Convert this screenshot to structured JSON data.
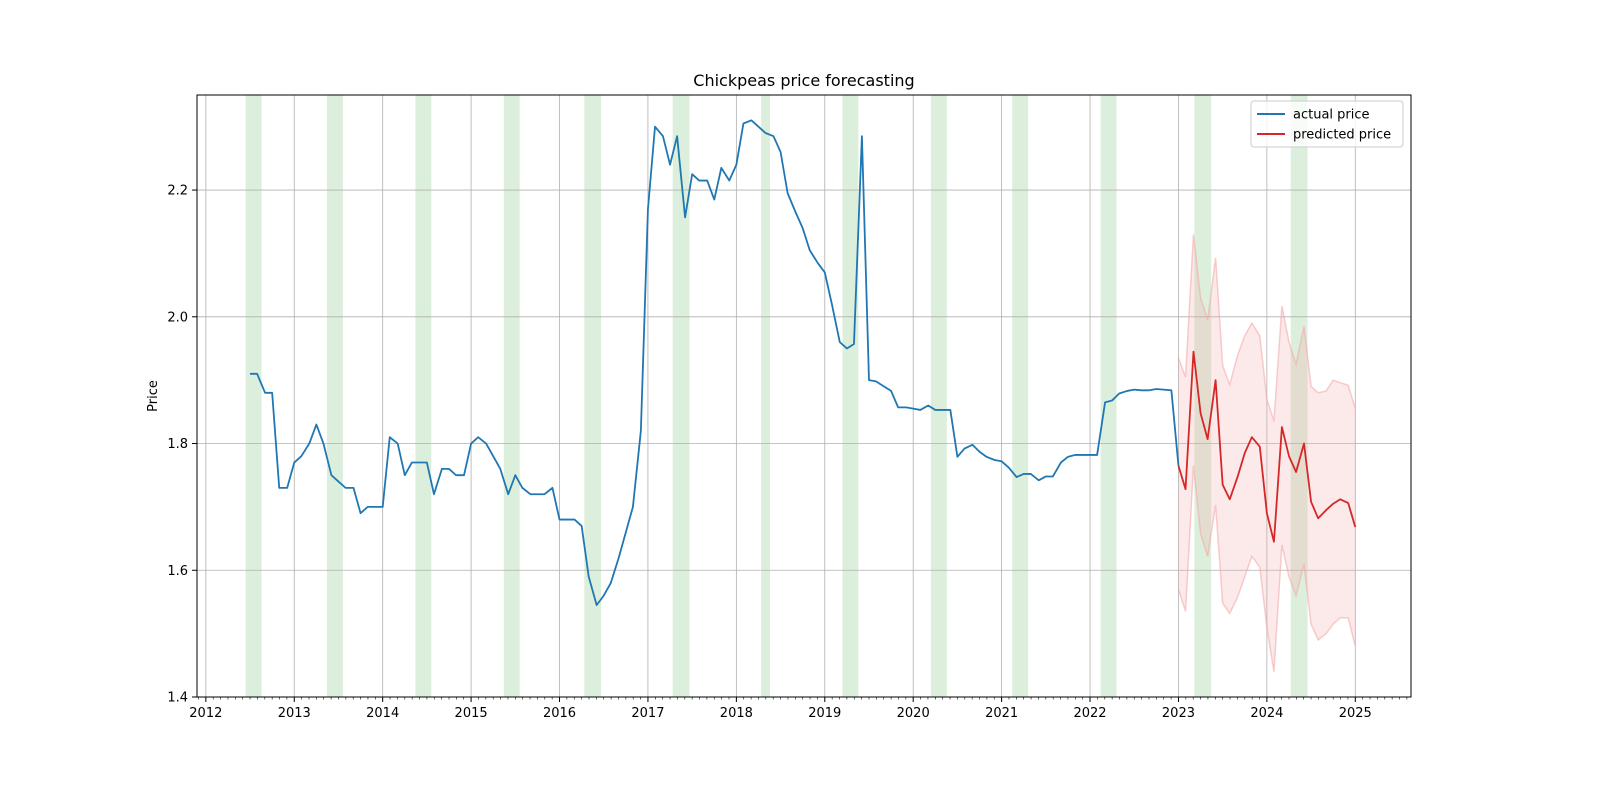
{
  "chart_data": {
    "type": "line",
    "title": "Chickpeas price forecasting",
    "xlabel": "",
    "ylabel": "Price",
    "xlim": [
      2011.9,
      2025.63
    ],
    "ylim": [
      1.4,
      2.35
    ],
    "x_ticks": [
      2012,
      2013,
      2014,
      2015,
      2016,
      2017,
      2018,
      2019,
      2020,
      2021,
      2022,
      2023,
      2024,
      2025
    ],
    "y_ticks": [
      1.4,
      1.6,
      1.8,
      2.0,
      2.2
    ],
    "grid": true,
    "legend_position": "top-right",
    "series": [
      {
        "name": "actual price",
        "color": "#1f77b4",
        "x": [
          2012.5,
          2012.58,
          2012.67,
          2012.75,
          2012.83,
          2012.92,
          2013.0,
          2013.08,
          2013.17,
          2013.25,
          2013.33,
          2013.42,
          2013.5,
          2013.58,
          2013.67,
          2013.75,
          2013.83,
          2013.92,
          2014.0,
          2014.08,
          2014.17,
          2014.25,
          2014.33,
          2014.42,
          2014.5,
          2014.58,
          2014.67,
          2014.75,
          2014.83,
          2014.92,
          2015.0,
          2015.08,
          2015.17,
          2015.25,
          2015.33,
          2015.42,
          2015.5,
          2015.58,
          2015.67,
          2015.75,
          2015.83,
          2015.92,
          2016.0,
          2016.08,
          2016.17,
          2016.25,
          2016.33,
          2016.42,
          2016.5,
          2016.58,
          2016.67,
          2016.75,
          2016.83,
          2016.92,
          2017.0,
          2017.08,
          2017.17,
          2017.25,
          2017.33,
          2017.42,
          2017.5,
          2017.58,
          2017.67,
          2017.75,
          2017.83,
          2017.92,
          2018.0,
          2018.08,
          2018.17,
          2018.25,
          2018.33,
          2018.42,
          2018.5,
          2018.58,
          2018.67,
          2018.75,
          2018.83,
          2018.92,
          2019.0,
          2019.08,
          2019.17,
          2019.25,
          2019.33,
          2019.42,
          2019.5,
          2019.58,
          2019.67,
          2019.75,
          2019.83,
          2019.92,
          2020.0,
          2020.08,
          2020.17,
          2020.25,
          2020.33,
          2020.42,
          2020.5,
          2020.58,
          2020.67,
          2020.75,
          2020.83,
          2020.92,
          2021.0,
          2021.08,
          2021.17,
          2021.25,
          2021.33,
          2021.42,
          2021.5,
          2021.58,
          2021.67,
          2021.75,
          2021.83,
          2021.92,
          2022.0,
          2022.08,
          2022.17,
          2022.25,
          2022.33,
          2022.42,
          2022.5,
          2022.58,
          2022.67,
          2022.75,
          2022.83,
          2022.92,
          2023.0
        ],
        "y": [
          1.91,
          1.91,
          1.88,
          1.88,
          1.73,
          1.73,
          1.77,
          1.78,
          1.8,
          1.83,
          1.8,
          1.75,
          1.74,
          1.73,
          1.73,
          1.69,
          1.7,
          1.7,
          1.7,
          1.81,
          1.8,
          1.75,
          1.77,
          1.77,
          1.77,
          1.72,
          1.76,
          1.76,
          1.75,
          1.75,
          1.8,
          1.81,
          1.8,
          1.78,
          1.76,
          1.72,
          1.75,
          1.73,
          1.72,
          1.72,
          1.72,
          1.73,
          1.68,
          1.68,
          1.68,
          1.67,
          1.59,
          1.545,
          1.56,
          1.58,
          1.62,
          1.66,
          1.7,
          1.82,
          2.17,
          2.3,
          2.285,
          2.24,
          2.285,
          2.157,
          2.225,
          2.215,
          2.215,
          2.185,
          2.235,
          2.215,
          2.24,
          2.305,
          2.31,
          2.3,
          2.29,
          2.285,
          2.26,
          2.195,
          2.165,
          2.14,
          2.105,
          2.085,
          2.07,
          2.02,
          1.96,
          1.95,
          1.957,
          2.285,
          1.9,
          1.898,
          1.89,
          1.883,
          1.857,
          1.857,
          1.855,
          1.853,
          1.86,
          1.853,
          1.853,
          1.853,
          1.779,
          1.792,
          1.798,
          1.787,
          1.779,
          1.774,
          1.772,
          1.762,
          1.747,
          1.752,
          1.752,
          1.742,
          1.748,
          1.748,
          1.77,
          1.779,
          1.782,
          1.782,
          1.782,
          1.782,
          1.865,
          1.868,
          1.879,
          1.883,
          1.885,
          1.884,
          1.884,
          1.886,
          1.885,
          1.884,
          1.765
        ]
      },
      {
        "name": "predicted price",
        "color": "#d62728",
        "x": [
          2023.0,
          2023.08,
          2023.17,
          2023.25,
          2023.33,
          2023.42,
          2023.5,
          2023.58,
          2023.67,
          2023.75,
          2023.83,
          2023.92,
          2024.0,
          2024.08,
          2024.17,
          2024.25,
          2024.33,
          2024.42,
          2024.5,
          2024.58,
          2024.67,
          2024.75,
          2024.83,
          2024.92,
          2025.0
        ],
        "y": [
          1.765,
          1.728,
          1.945,
          1.848,
          1.807,
          1.9,
          1.735,
          1.712,
          1.748,
          1.785,
          1.81,
          1.795,
          1.69,
          1.645,
          1.826,
          1.78,
          1.755,
          1.8,
          1.708,
          1.682,
          1.695,
          1.705,
          1.712,
          1.706,
          1.668
        ]
      }
    ],
    "confidence_band": {
      "color": "#f4a6a6",
      "x": [
        2023.0,
        2023.08,
        2023.17,
        2023.25,
        2023.33,
        2023.42,
        2023.5,
        2023.58,
        2023.67,
        2023.75,
        2023.83,
        2023.92,
        2024.0,
        2024.08,
        2024.17,
        2024.25,
        2024.33,
        2024.42,
        2024.5,
        2024.58,
        2024.67,
        2024.75,
        2024.83,
        2024.92,
        2025.0
      ],
      "upper": [
        1.935,
        1.905,
        2.13,
        2.03,
        1.995,
        2.093,
        1.923,
        1.893,
        1.94,
        1.97,
        1.99,
        1.97,
        1.87,
        1.835,
        2.017,
        1.96,
        1.925,
        1.985,
        1.89,
        1.88,
        1.883,
        1.9,
        1.896,
        1.892,
        1.855
      ],
      "lower": [
        1.57,
        1.535,
        1.765,
        1.658,
        1.622,
        1.703,
        1.548,
        1.532,
        1.558,
        1.59,
        1.622,
        1.605,
        1.51,
        1.44,
        1.64,
        1.59,
        1.56,
        1.61,
        1.515,
        1.49,
        1.5,
        1.515,
        1.525,
        1.525,
        1.48
      ]
    },
    "highlight_spans": [
      [
        2012.45,
        2012.63
      ],
      [
        2013.37,
        2013.55
      ],
      [
        2014.37,
        2014.55
      ],
      [
        2015.37,
        2015.55
      ],
      [
        2016.28,
        2016.47
      ],
      [
        2017.28,
        2017.47
      ],
      [
        2018.28,
        2018.38
      ],
      [
        2019.2,
        2019.38
      ],
      [
        2020.2,
        2020.38
      ],
      [
        2021.12,
        2021.3
      ],
      [
        2022.12,
        2022.3
      ],
      [
        2023.18,
        2023.37
      ],
      [
        2024.27,
        2024.46
      ]
    ],
    "highlight_color": "#d6ecd6"
  }
}
